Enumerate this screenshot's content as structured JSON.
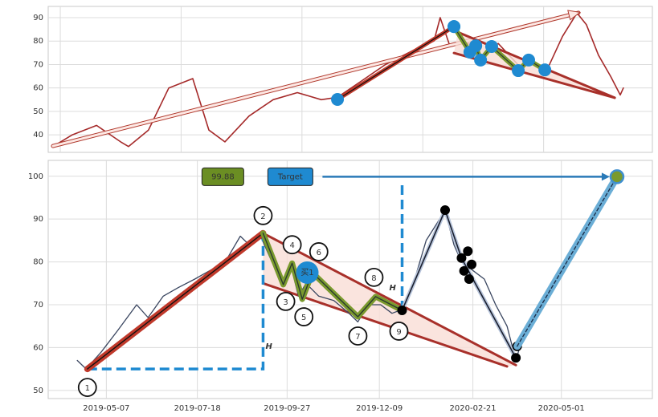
{
  "chart_data": [
    {
      "type": "line",
      "color": "#a52a2a",
      "xlim": [
        0,
        250
      ],
      "xgrid": [
        5,
        55,
        105,
        155,
        205
      ],
      "ylim": [
        32.5,
        94.8
      ],
      "yticks": [
        40,
        50,
        60,
        70,
        80,
        90
      ],
      "x": [
        2,
        10,
        20,
        30,
        33.2,
        41.5,
        49.9,
        59.8,
        66.5,
        73.1,
        83.1,
        93.1,
        103.1,
        113,
        119.7,
        129.7,
        139.6,
        152.9,
        159.6,
        162.2,
        166.2,
        172.9,
        179.5,
        186.2,
        196.1,
        199.5,
        206.1,
        212.8,
        218.8,
        222.7,
        227.7,
        232.7,
        236.7,
        238
      ],
      "values": [
        35,
        40,
        44,
        37,
        35,
        42,
        60,
        64,
        42,
        37,
        48,
        55,
        58,
        55,
        56,
        63,
        70,
        77,
        80,
        90,
        78,
        80,
        73,
        79,
        68,
        72,
        67,
        82,
        92,
        87,
        74,
        65,
        57,
        60
      ],
      "arrow": {
        "x": [
          2,
          219.4
        ],
        "y": [
          35.2,
          92.1
        ]
      },
      "trend": {
        "x": [
          119.7,
          167.9
        ],
        "y": [
          55.1,
          86.2
        ]
      },
      "waves": {
        "x": [
          167.9,
          174.5,
          176.9,
          178.9,
          183.5,
          194.5,
          198.8,
          205.5
        ],
        "y": [
          86.2,
          75.3,
          78,
          71.9,
          77.7,
          67.4,
          71.9,
          67.7
        ]
      },
      "wedge": {
        "upper": {
          "x": [
            169.5,
            234.4
          ],
          "y": [
            83.8,
            55.8
          ]
        },
        "lower": {
          "x": [
            167.9,
            234.4
          ],
          "y": [
            74.9,
            55.8
          ]
        }
      }
    },
    {
      "type": "line",
      "color": "#3a4660",
      "xlim": [
        "2019-03-22",
        "2020-07-12"
      ],
      "xticks": [
        "2019-05-07",
        "2019-07-18",
        "2019-09-27",
        "2019-12-09",
        "2020-02-21",
        "2020-05-01"
      ],
      "ylim": [
        48.1,
        103.7
      ],
      "yticks": [
        50,
        60,
        70,
        80,
        90,
        100
      ],
      "x": [
        "2019-04-14",
        "2019-04-21",
        "2019-05-03",
        "2019-05-16",
        "2019-05-31",
        "2019-06-09",
        "2019-06-21",
        "2019-07-03",
        "2019-07-16",
        "2019-07-28",
        "2019-08-09",
        "2019-08-21",
        "2019-08-28",
        "2019-09-06",
        "2019-09-15",
        "2019-09-24",
        "2019-09-30",
        "2019-10-06",
        "2019-10-12",
        "2019-10-22",
        "2019-11-03",
        "2019-11-15",
        "2019-11-22",
        "2019-11-30",
        "2019-12-10",
        "2019-12-19",
        "2019-12-28",
        "2020-01-06",
        "2020-01-15",
        "2020-01-30",
        "2020-02-06",
        "2020-02-12",
        "2020-02-21",
        "2020-03-01",
        "2020-03-10",
        "2020-03-19",
        "2020-03-26",
        "2020-03-29"
      ],
      "values": [
        57,
        55,
        59,
        64,
        70,
        67,
        72,
        74,
        76,
        78,
        80,
        86,
        84,
        86,
        80,
        76,
        79,
        72,
        75,
        72,
        71,
        68,
        66,
        70,
        70,
        68,
        69,
        76,
        85,
        92,
        84,
        80,
        78,
        76,
        70,
        65,
        57,
        60
      ],
      "pivots": {
        "labels": [
          "1",
          "2",
          "3",
          "4",
          "5",
          "6",
          "7",
          "8",
          "9"
        ],
        "x": [
          "2019-04-22",
          "2019-09-08",
          "2019-09-24",
          "2019-10-01",
          "2019-10-09",
          "2019-10-17",
          "2019-11-22",
          "2019-12-06",
          "2019-12-27"
        ],
        "y": [
          55,
          86.7,
          74.7,
          79.7,
          71.3,
          77.5,
          67.2,
          71.9,
          68.7
        ]
      },
      "wedge": {
        "upper": {
          "x": [
            "2019-09-08",
            "2020-03-26"
          ],
          "y": [
            86.7,
            55.9
          ]
        },
        "lower": {
          "x": [
            "2019-09-08",
            "2020-03-19"
          ],
          "y": [
            75,
            55.6
          ]
        }
      },
      "h_label": "H",
      "buy": {
        "label": "买1",
        "x": "2019-10-13",
        "y": 77.5
      },
      "target_label": "Target",
      "target_arrow_start": "2019-10-25",
      "target": {
        "x": "2020-06-14",
        "y": 99.88
      },
      "projection": {
        "x": [
          "2020-03-27",
          "2020-06-14"
        ],
        "y": [
          60.3,
          99.88
        ]
      },
      "swing": {
        "x": [
          "2019-12-27",
          "2020-01-30",
          "2020-02-12",
          "2020-02-17",
          "2020-02-20",
          "2020-02-14",
          "2020-02-18",
          "2020-03-26",
          "2020-03-27"
        ],
        "y": [
          68.7,
          92.1,
          80.9,
          82.5,
          79.4,
          77.9,
          76,
          57.6,
          60.3
        ]
      }
    }
  ]
}
